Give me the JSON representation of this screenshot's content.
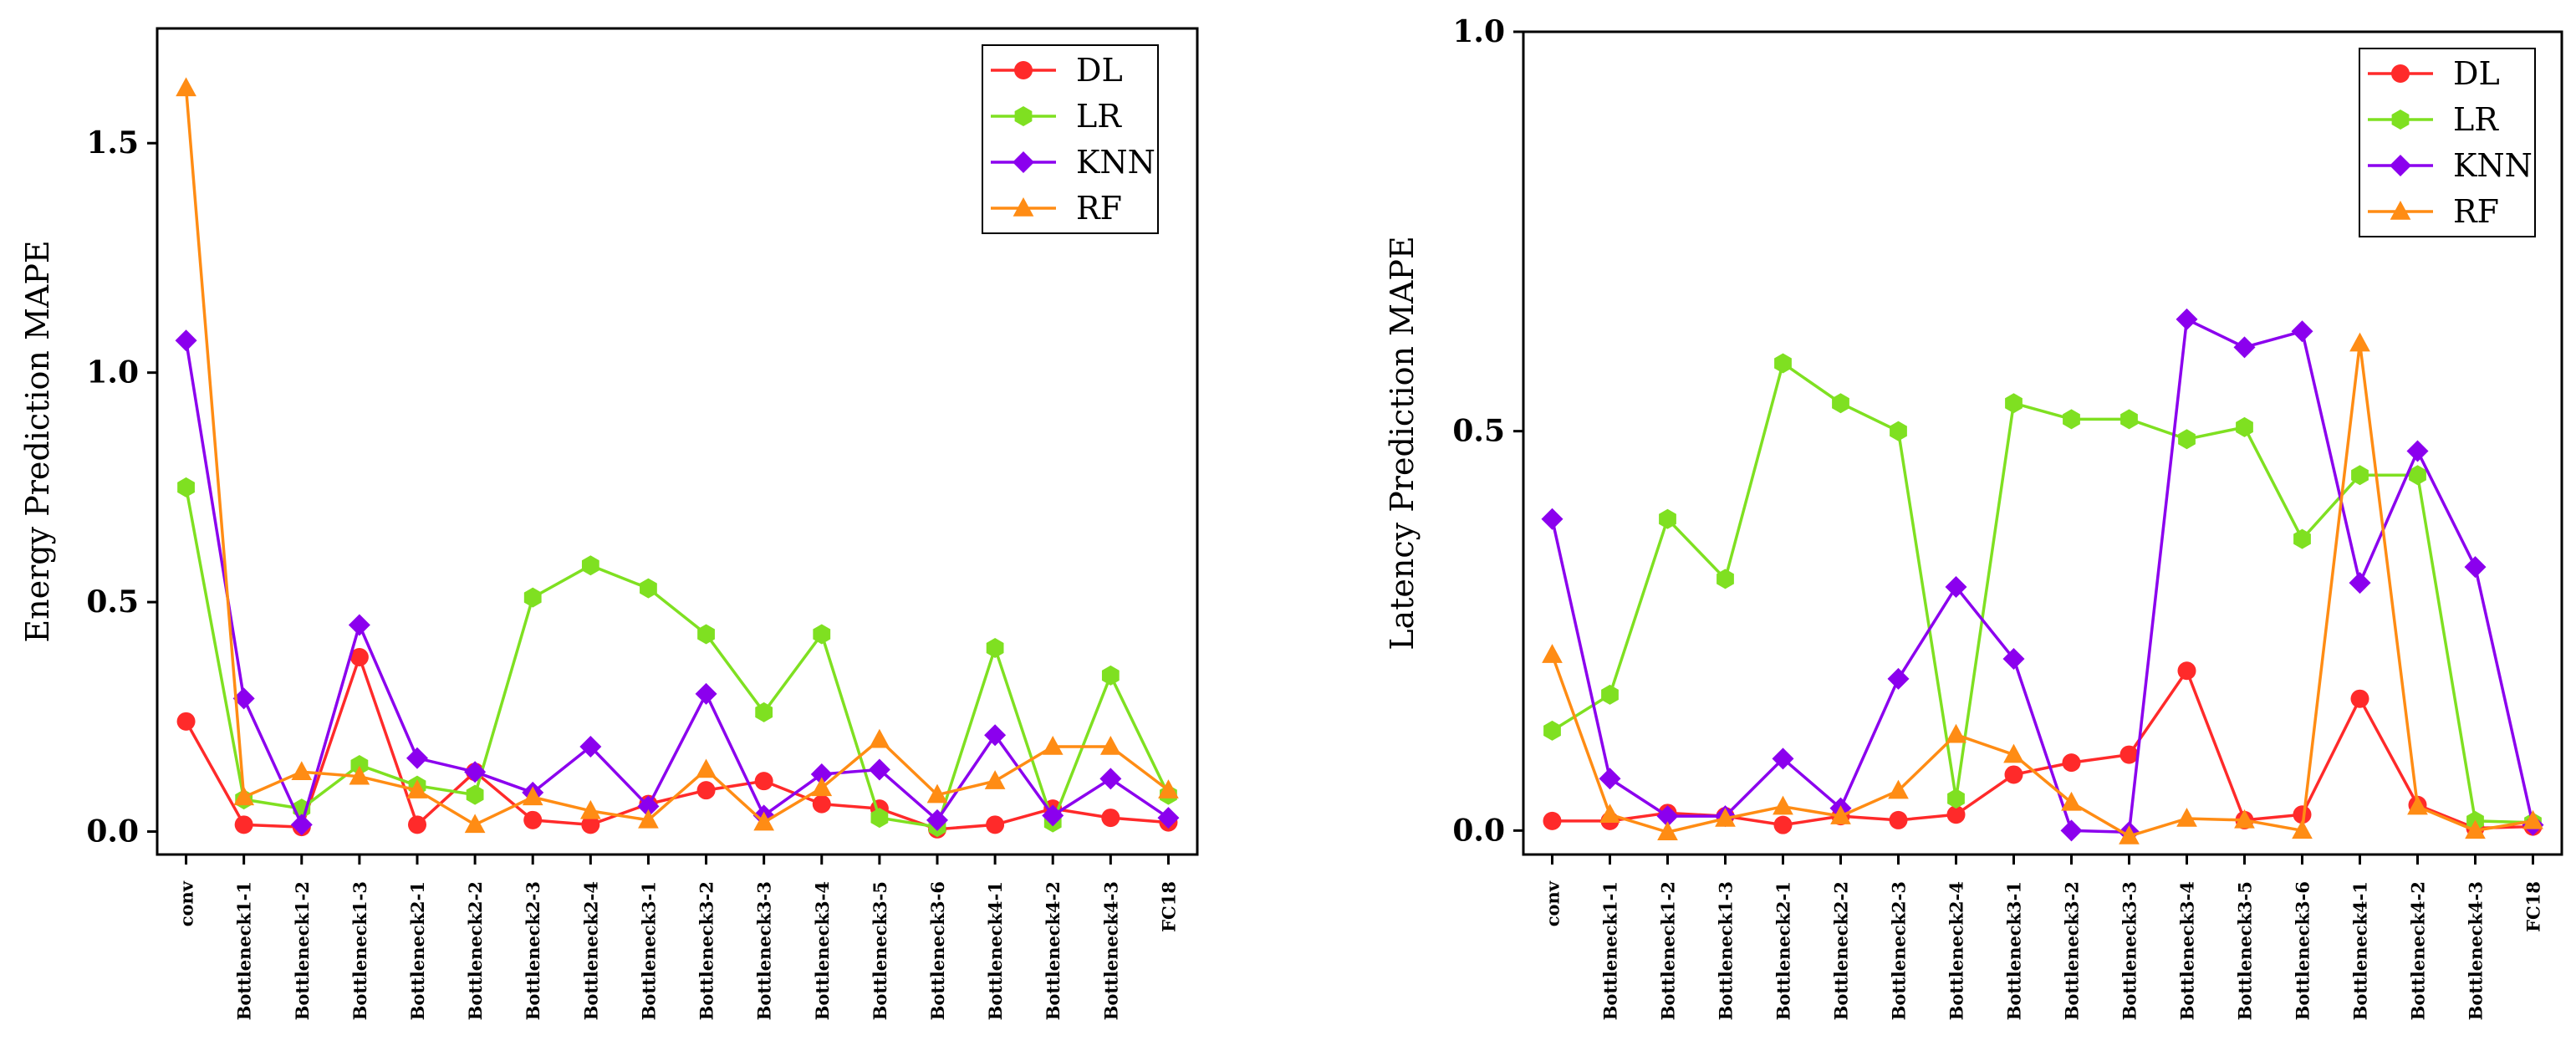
{
  "chart_data": [
    {
      "type": "line",
      "ylabel": "Energy Prediction MAPE",
      "xlabel": "",
      "ylim": [
        -0.05,
        1.75
      ],
      "yticks": [
        0.0,
        0.5,
        1.0,
        1.5
      ],
      "ytick_labels": [
        "0.0",
        "0.5",
        "1.0",
        "1.5"
      ],
      "legend_position": "top-right",
      "categories": [
        "conv",
        "Bottleneck1-1",
        "Bottleneck1-2",
        "Bottleneck1-3",
        "Bottleneck2-1",
        "Bottleneck2-2",
        "Bottleneck2-3",
        "Bottleneck2-4",
        "Bottleneck3-1",
        "Bottleneck3-2",
        "Bottleneck3-3",
        "Bottleneck3-4",
        "Bottleneck3-5",
        "Bottleneck3-6",
        "Bottleneck4-1",
        "Bottleneck4-2",
        "Bottleneck4-3",
        "FC18"
      ],
      "series": [
        {
          "name": "DL",
          "color": "#ff2a2a",
          "marker": "circle",
          "values": [
            0.24,
            0.015,
            0.01,
            0.38,
            0.015,
            0.13,
            0.025,
            0.015,
            0.06,
            0.09,
            0.11,
            0.06,
            0.05,
            0.005,
            0.015,
            0.05,
            0.03,
            0.02
          ]
        },
        {
          "name": "LR",
          "color": "#7fe021",
          "marker": "hexagon",
          "values": [
            0.75,
            0.07,
            0.05,
            0.145,
            0.1,
            0.08,
            0.51,
            0.58,
            0.53,
            0.43,
            0.26,
            0.43,
            0.03,
            0.01,
            0.4,
            0.02,
            0.34,
            0.08
          ]
        },
        {
          "name": "KNN",
          "color": "#8b00ee",
          "marker": "diamond",
          "values": [
            1.07,
            0.29,
            0.015,
            0.45,
            0.16,
            0.13,
            0.085,
            0.185,
            0.055,
            0.3,
            0.035,
            0.125,
            0.135,
            0.025,
            0.21,
            0.035,
            0.115,
            0.03
          ]
        },
        {
          "name": "RF",
          "color": "#ff8c14",
          "marker": "triangle",
          "values": [
            1.62,
            0.075,
            0.13,
            0.12,
            0.09,
            0.015,
            0.075,
            0.045,
            0.025,
            0.135,
            0.02,
            0.095,
            0.2,
            0.08,
            0.11,
            0.185,
            0.185,
            0.09
          ]
        }
      ]
    },
    {
      "type": "line",
      "ylabel": "Latency Prediction MAPE",
      "xlabel": "",
      "ylim": [
        -0.03,
        1.0
      ],
      "yticks": [
        0.0,
        0.5,
        1.0
      ],
      "ytick_labels": [
        "0.0",
        "0.5",
        "1.0"
      ],
      "legend_position": "top-right",
      "categories": [
        "conv",
        "Bottleneck1-1",
        "Bottleneck1-2",
        "Bottleneck1-3",
        "Bottleneck2-1",
        "Bottleneck2-2",
        "Bottleneck2-3",
        "Bottleneck2-4",
        "Bottleneck3-1",
        "Bottleneck3-2",
        "Bottleneck3-3",
        "Bottleneck3-4",
        "Bottleneck3-5",
        "Bottleneck3-6",
        "Bottleneck4-1",
        "Bottleneck4-2",
        "Bottleneck4-3",
        "FC18"
      ],
      "series": [
        {
          "name": "DL",
          "color": "#ff2a2a",
          "marker": "circle",
          "values": [
            0.012,
            0.012,
            0.022,
            0.018,
            0.007,
            0.018,
            0.013,
            0.02,
            0.07,
            0.085,
            0.095,
            0.2,
            0.013,
            0.02,
            0.165,
            0.032,
            0.003,
            0.005
          ]
        },
        {
          "name": "LR",
          "color": "#7fe021",
          "marker": "hexagon",
          "values": [
            0.125,
            0.17,
            0.39,
            0.315,
            0.585,
            0.535,
            0.5,
            0.04,
            0.535,
            0.515,
            0.515,
            0.49,
            0.505,
            0.365,
            0.445,
            0.445,
            0.012,
            0.01
          ]
        },
        {
          "name": "KNN",
          "color": "#8b00ee",
          "marker": "diamond",
          "values": [
            0.39,
            0.065,
            0.018,
            0.018,
            0.09,
            0.028,
            0.19,
            0.305,
            0.215,
            0.0,
            -0.002,
            0.64,
            0.605,
            0.625,
            0.31,
            0.475,
            0.33,
            0.007
          ]
        },
        {
          "name": "RF",
          "color": "#ff8c14",
          "marker": "triangle",
          "values": [
            0.22,
            0.02,
            -0.002,
            0.015,
            0.03,
            0.018,
            0.05,
            0.12,
            0.095,
            0.035,
            -0.007,
            0.015,
            0.013,
            0.0,
            0.61,
            0.03,
            0.0,
            0.012
          ]
        }
      ]
    }
  ]
}
